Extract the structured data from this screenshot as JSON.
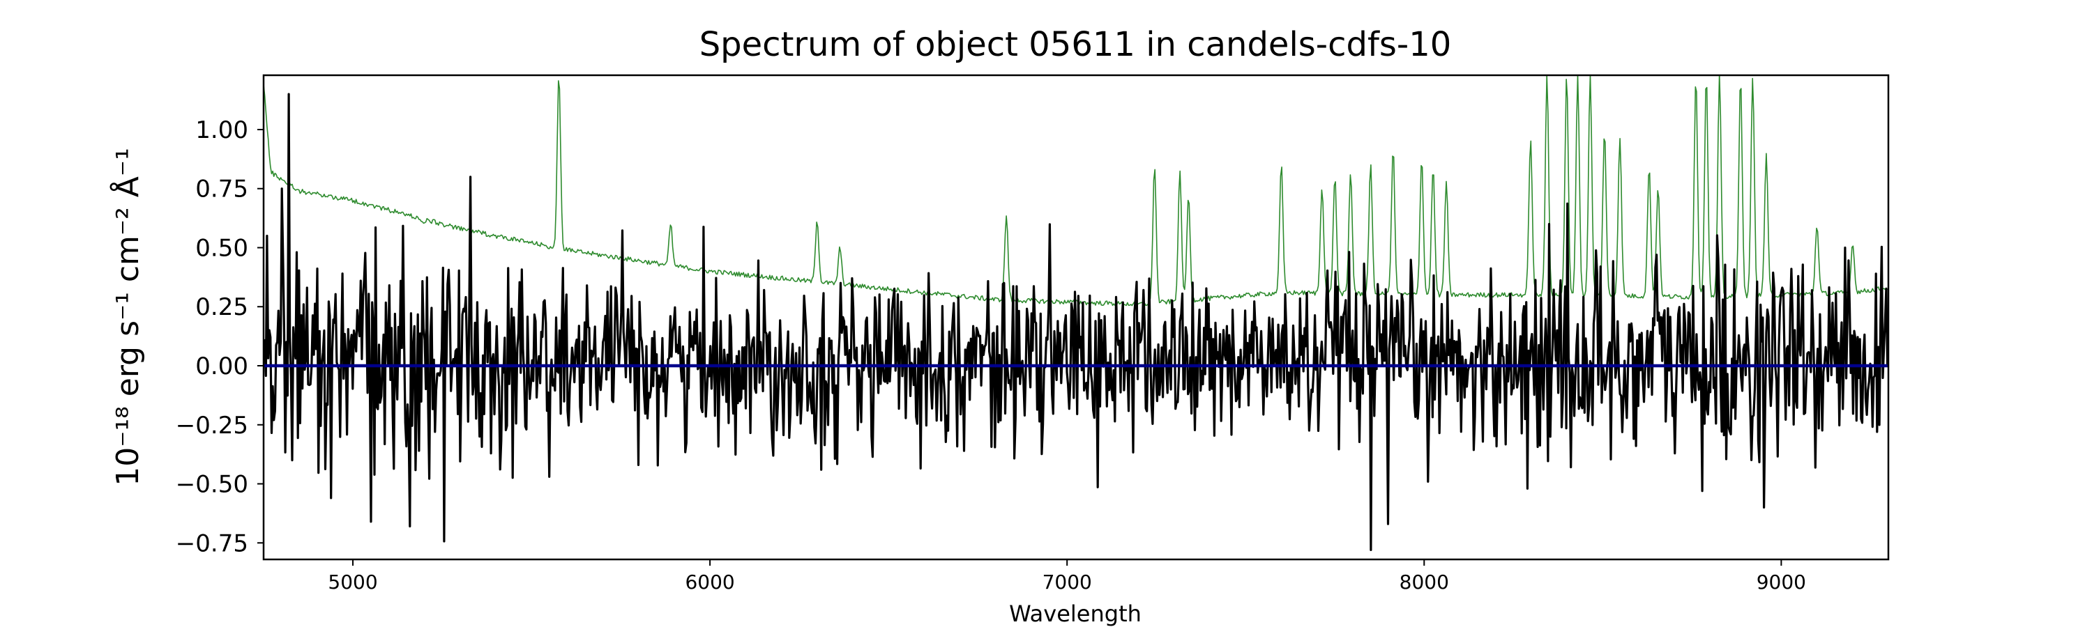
{
  "chart_data": {
    "type": "line",
    "title": "Spectrum of object 05611 in candels-cdfs-10",
    "xlabel": "Wavelength",
    "ylabel": "10⁻¹⁸ erg s⁻¹ cm⁻² Å⁻¹",
    "xlim": [
      4750,
      9300
    ],
    "ylim": [
      -0.82,
      1.23
    ],
    "xticks": [
      5000,
      6000,
      7000,
      8000,
      9000
    ],
    "yticks": [
      1.0,
      0.75,
      0.5,
      0.25,
      0.0,
      -0.25,
      -0.5,
      -0.75
    ],
    "yticklabels": [
      "1.00",
      "0.75",
      "0.50",
      "0.25",
      "0.00",
      "−0.25",
      "−0.50",
      "−0.75"
    ],
    "grid": false,
    "colors": {
      "flux": "#000000",
      "error": "#2e8b2e",
      "model": "#00008b"
    },
    "series": [
      {
        "key": "error",
        "color": "#2e8b2e",
        "baseline": [
          [
            4750,
            1.2
          ],
          [
            4770,
            0.82
          ],
          [
            4850,
            0.74
          ],
          [
            5000,
            0.7
          ],
          [
            5300,
            0.58
          ],
          [
            5600,
            0.49
          ],
          [
            6000,
            0.4
          ],
          [
            6400,
            0.34
          ],
          [
            6800,
            0.28
          ],
          [
            7200,
            0.26
          ],
          [
            7600,
            0.31
          ],
          [
            8000,
            0.3
          ],
          [
            8400,
            0.3
          ],
          [
            8800,
            0.29
          ],
          [
            9200,
            0.31
          ],
          [
            9300,
            0.33
          ]
        ],
        "peaks": [
          [
            5197,
            0.6
          ],
          [
            5577,
            1.23
          ],
          [
            5890,
            0.6
          ],
          [
            6300,
            0.62
          ],
          [
            6364,
            0.5
          ],
          [
            6830,
            0.64
          ],
          [
            7245,
            0.85
          ],
          [
            7316,
            0.82
          ],
          [
            7340,
            0.72
          ],
          [
            7600,
            0.85
          ],
          [
            7714,
            0.76
          ],
          [
            7750,
            0.8
          ],
          [
            7794,
            0.82
          ],
          [
            7850,
            0.85
          ],
          [
            7913,
            0.92
          ],
          [
            7993,
            0.88
          ],
          [
            8025,
            0.84
          ],
          [
            8062,
            0.78
          ],
          [
            8298,
            0.97
          ],
          [
            8344,
            1.23
          ],
          [
            8399,
            1.23
          ],
          [
            8430,
            1.23
          ],
          [
            8465,
            1.23
          ],
          [
            8505,
            1.0
          ],
          [
            8548,
            0.97
          ],
          [
            8630,
            0.84
          ],
          [
            8655,
            0.76
          ],
          [
            8761,
            1.23
          ],
          [
            8790,
            1.23
          ],
          [
            8827,
            1.23
          ],
          [
            8886,
            1.23
          ],
          [
            8920,
            1.23
          ],
          [
            8958,
            0.9
          ],
          [
            9100,
            0.6
          ],
          [
            9200,
            0.52
          ]
        ]
      },
      {
        "key": "flux",
        "color": "#000000",
        "noise_sigma": 0.17,
        "mean": 0.02,
        "extremes": [
          [
            4760,
            0.55
          ],
          [
            4800,
            0.75
          ],
          [
            4820,
            1.15
          ],
          [
            4830,
            -0.4
          ],
          [
            4940,
            -0.56
          ],
          [
            5050,
            -0.66
          ],
          [
            5160,
            -0.68
          ],
          [
            5330,
            0.8
          ],
          [
            5550,
            -0.47
          ],
          [
            5800,
            -0.42
          ],
          [
            6310,
            -0.44
          ],
          [
            7850,
            -0.78
          ],
          [
            7900,
            -0.67
          ],
          [
            8290,
            -0.52
          ],
          [
            8350,
            0.6
          ],
          [
            8650,
            0.47
          ],
          [
            8780,
            -0.53
          ],
          [
            8950,
            -0.6
          ],
          [
            9180,
            0.5
          ]
        ]
      },
      {
        "key": "model",
        "color": "#00008b",
        "values": [
          [
            4750,
            0.0
          ],
          [
            9300,
            0.0
          ]
        ]
      }
    ]
  }
}
